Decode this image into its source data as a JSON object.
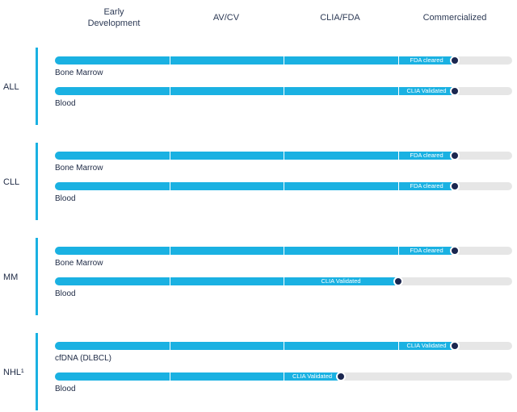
{
  "chart_data": {
    "type": "bar",
    "stages": [
      "Early\nDevelopment",
      "AV/CV",
      "CLIA/FDA",
      "Commercialized"
    ],
    "indications": [
      {
        "name": "ALL",
        "rows": [
          {
            "sample": "Bone Marrow",
            "status": "FDA cleared",
            "progress": 0.875
          },
          {
            "sample": "Blood",
            "status": "CLIA Validated",
            "progress": 0.875
          }
        ]
      },
      {
        "name": "CLL",
        "rows": [
          {
            "sample": "Bone Marrow",
            "status": "FDA cleared",
            "progress": 0.875
          },
          {
            "sample": "Blood",
            "status": "FDA cleared",
            "progress": 0.875
          }
        ]
      },
      {
        "name": "MM",
        "rows": [
          {
            "sample": "Bone Marrow",
            "status": "FDA cleared",
            "progress": 0.875
          },
          {
            "sample": "Blood",
            "status": "CLIA Validated",
            "progress": 0.75
          }
        ]
      },
      {
        "name": "NHL¹",
        "rows": [
          {
            "sample": "cfDNA (DLBCL)",
            "status": "CLIA Validated",
            "progress": 0.875
          },
          {
            "sample": "Blood",
            "status": "CLIA Validated",
            "progress": 0.625
          }
        ]
      }
    ],
    "colors": {
      "fill": "#1ab1e2",
      "track": "#e6e6e6",
      "marker": "#1b2750"
    }
  }
}
